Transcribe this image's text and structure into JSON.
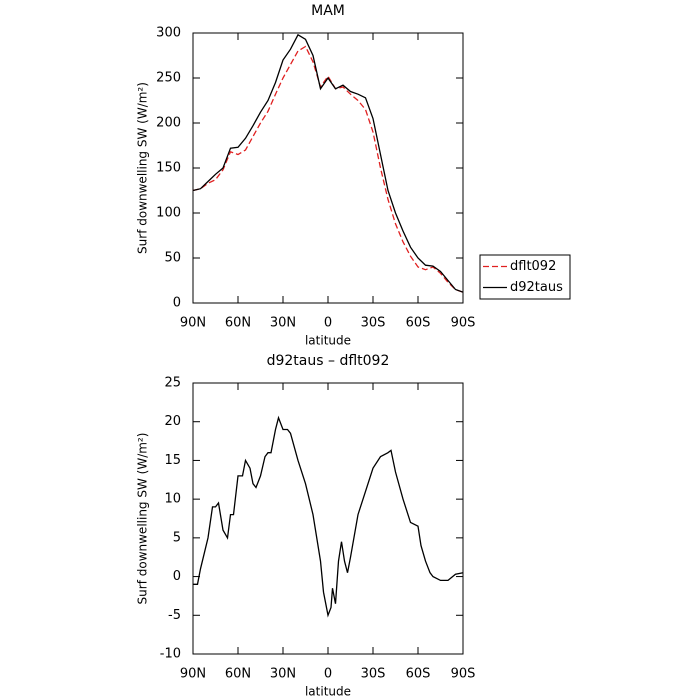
{
  "chart_data": [
    {
      "type": "line",
      "title": "MAM",
      "xlabel": "latitude",
      "ylabel": "Surf downwelling SW (W/m²)",
      "x": [
        90,
        85,
        80,
        75,
        70,
        65,
        60,
        55,
        50,
        45,
        40,
        35,
        30,
        25,
        20,
        15,
        10,
        5,
        0,
        -5,
        -10,
        -15,
        -20,
        -25,
        -30,
        -35,
        -40,
        -45,
        -50,
        -55,
        -60,
        -65,
        -70,
        -75,
        -80,
        -85,
        -90
      ],
      "xlim": [
        90,
        -90
      ],
      "xticks": [
        {
          "value": 90,
          "label": "90N"
        },
        {
          "value": 60,
          "label": "60N"
        },
        {
          "value": 30,
          "label": "30N"
        },
        0,
        {
          "value": -30,
          "label": "30S"
        },
        {
          "value": -60,
          "label": "60S"
        },
        {
          "value": -90,
          "label": "90S"
        }
      ],
      "ylim": [
        0,
        300
      ],
      "yticks": [
        0,
        50,
        100,
        150,
        200,
        250,
        300
      ],
      "legend": "outside right",
      "series": [
        {
          "name": "dflt092",
          "color": "#e02020",
          "linestyle": "dashed",
          "values": [
            125,
            127,
            133,
            137,
            148,
            168,
            165,
            170,
            185,
            200,
            213,
            232,
            250,
            265,
            280,
            285,
            268,
            240,
            252,
            238,
            240,
            232,
            225,
            215,
            190,
            150,
            115,
            88,
            68,
            52,
            40,
            37,
            40,
            33,
            23,
            15,
            12
          ]
        },
        {
          "name": "d92taus",
          "color": "#000000",
          "linestyle": "solid",
          "values": [
            125,
            127,
            135,
            143,
            150,
            172,
            173,
            183,
            197,
            212,
            225,
            245,
            270,
            282,
            298,
            293,
            275,
            238,
            250,
            238,
            242,
            235,
            232,
            228,
            205,
            165,
            125,
            100,
            80,
            62,
            50,
            42,
            41,
            35,
            25,
            15,
            12
          ]
        }
      ]
    },
    {
      "type": "line",
      "title": "d92taus – dflt092",
      "xlabel": "latitude",
      "ylabel": "Surf downwelling SW (W/m²)",
      "x": [
        90,
        87,
        85,
        80,
        77,
        75,
        73,
        70,
        67,
        65,
        63,
        60,
        57,
        55,
        52,
        50,
        48,
        45,
        42,
        40,
        38,
        35,
        33,
        30,
        27,
        25,
        20,
        15,
        10,
        5,
        3,
        0,
        -2,
        -3,
        -5,
        -7,
        -9,
        -11,
        -13,
        -15,
        -20,
        -25,
        -30,
        -35,
        -40,
        -42,
        -45,
        -50,
        -55,
        -60,
        -62,
        -65,
        -68,
        -70,
        -75,
        -80,
        -85,
        -90
      ],
      "xlim": [
        90,
        -90
      ],
      "xticks": [
        {
          "value": 90,
          "label": "90N"
        },
        {
          "value": 60,
          "label": "60N"
        },
        {
          "value": 30,
          "label": "30N"
        },
        0,
        {
          "value": -30,
          "label": "30S"
        },
        {
          "value": -60,
          "label": "60S"
        },
        {
          "value": -90,
          "label": "90S"
        }
      ],
      "ylim": [
        -10,
        25
      ],
      "yticks": [
        -10,
        -5,
        0,
        5,
        10,
        15,
        20,
        25
      ],
      "series": [
        {
          "name": null,
          "color": "#000000",
          "linestyle": "solid",
          "values": [
            -1,
            -1,
            1,
            5,
            9,
            9,
            9.5,
            6,
            5,
            8,
            8,
            13,
            13,
            15,
            14,
            12,
            11.5,
            13,
            15.5,
            16,
            16,
            19,
            20.5,
            19,
            19,
            18.5,
            15,
            12,
            8,
            2,
            -2,
            -5,
            -4,
            -1.5,
            -3.5,
            2,
            4.5,
            2,
            0.5,
            2.5,
            8,
            11,
            14,
            15.5,
            16,
            16.3,
            13.5,
            10,
            7,
            6.5,
            4,
            2,
            0.5,
            0,
            -0.5,
            -0.5,
            0.3,
            0.5
          ]
        }
      ]
    }
  ]
}
